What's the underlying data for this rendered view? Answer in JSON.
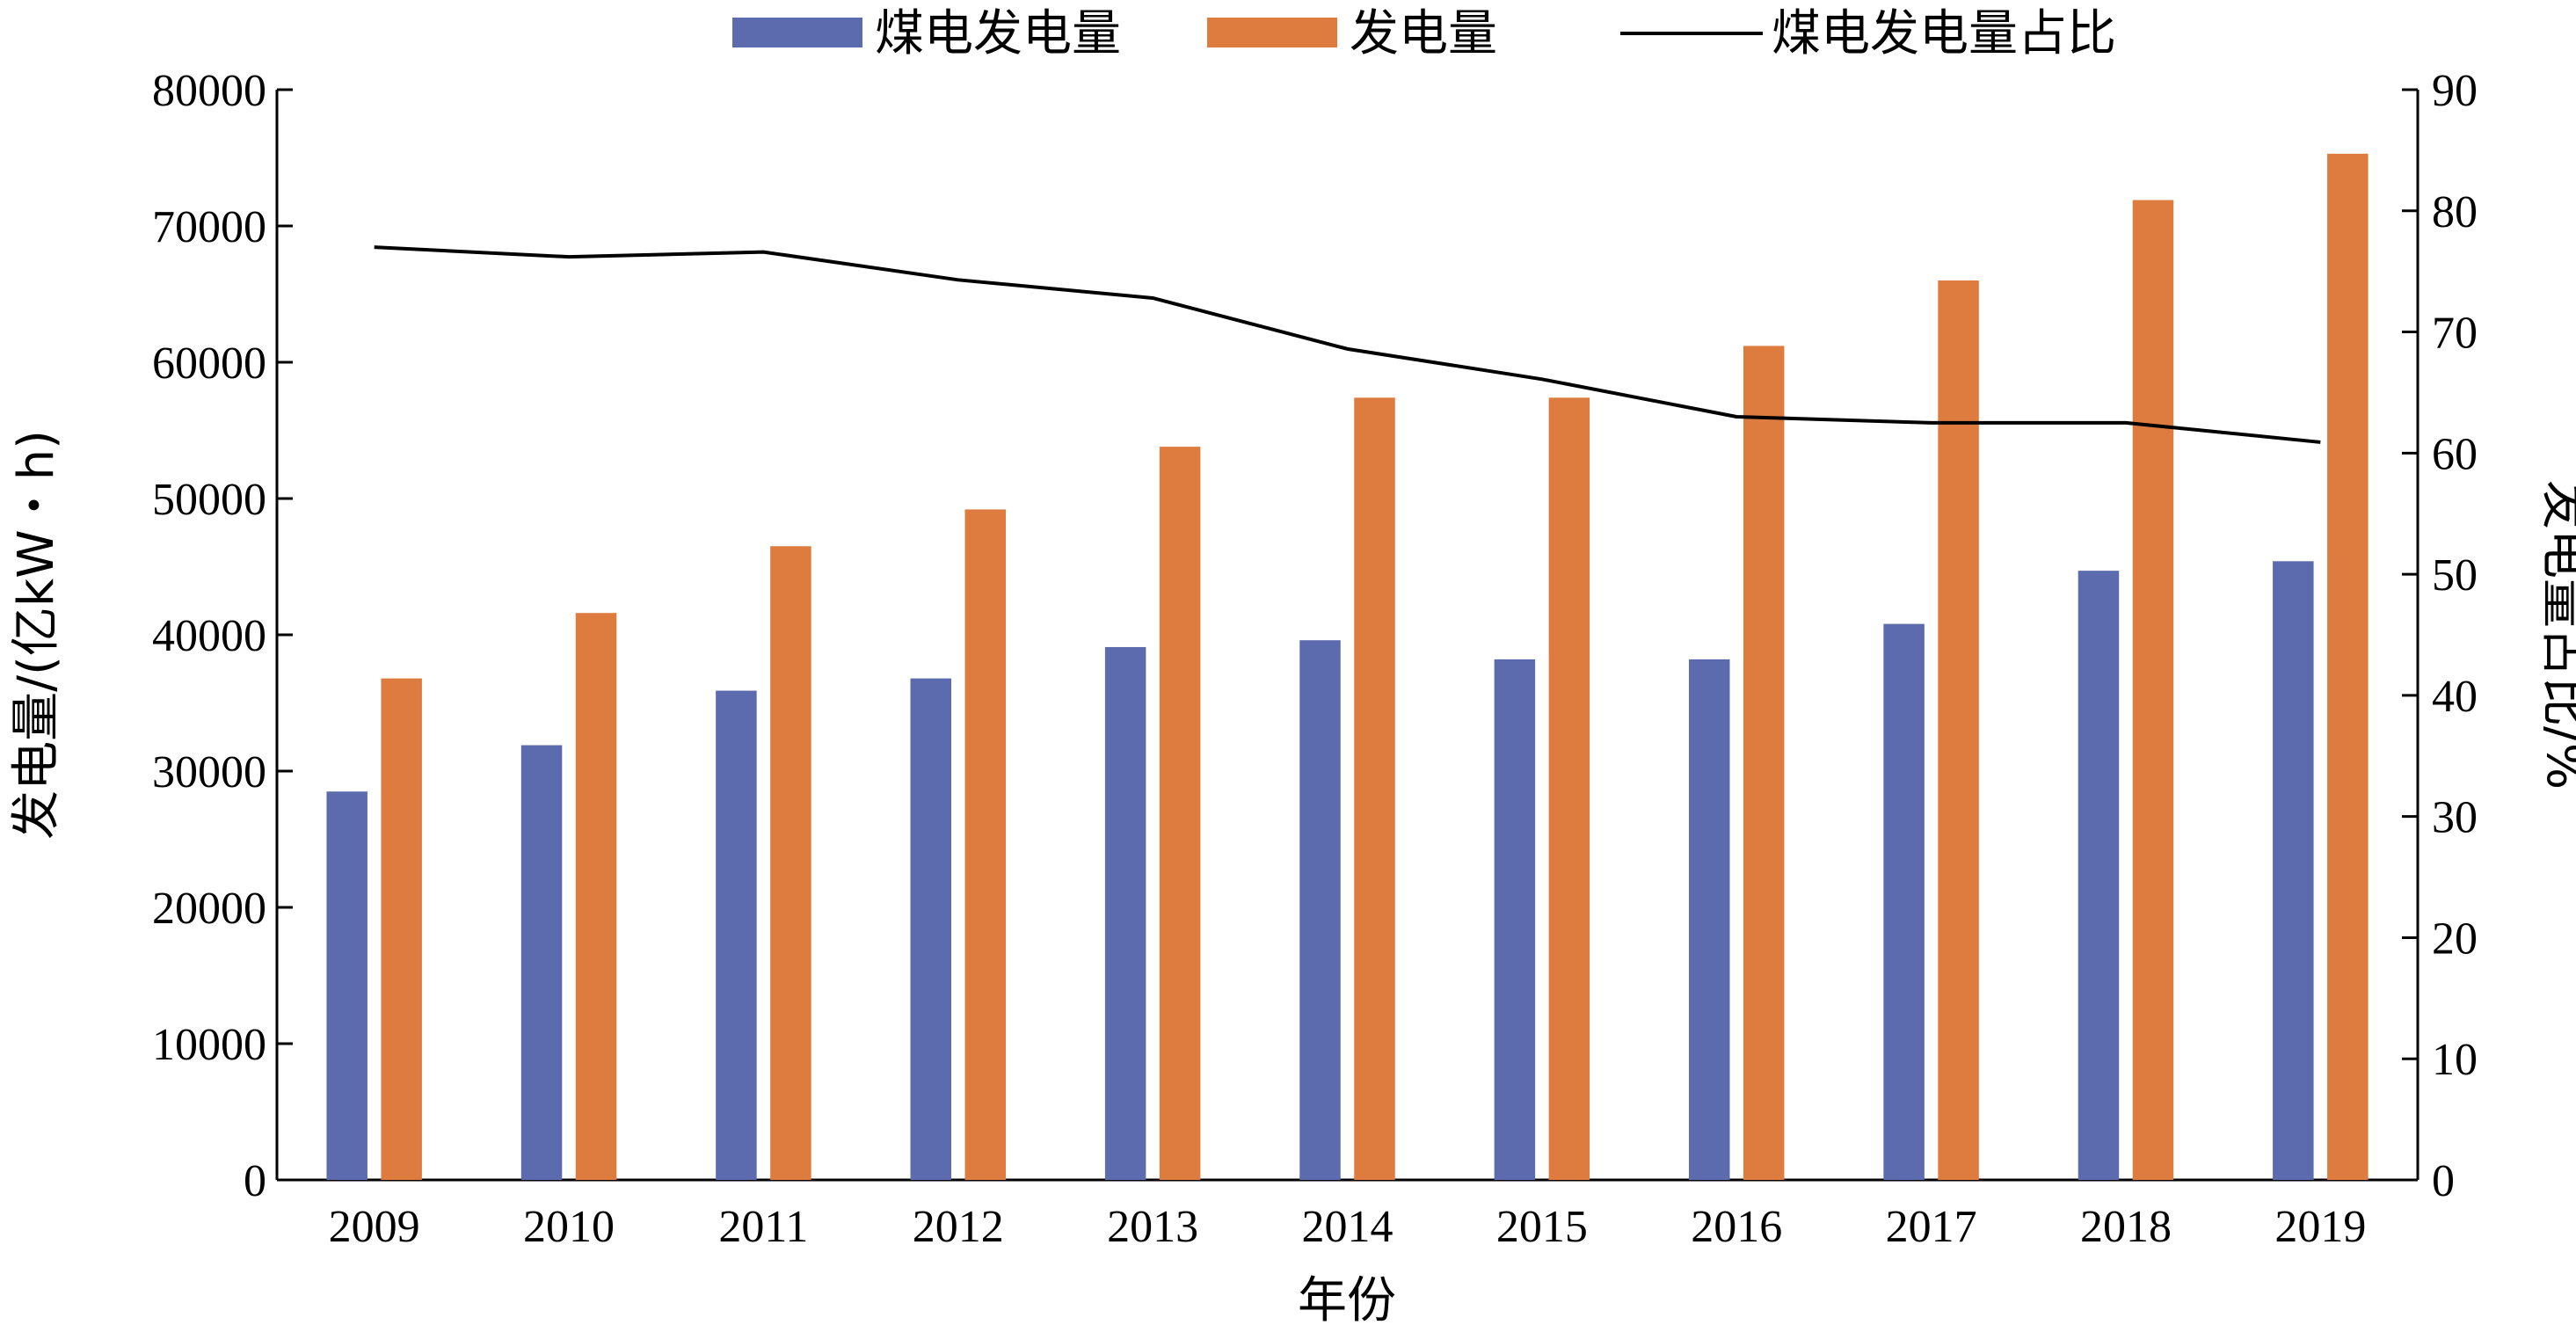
{
  "chart_data": {
    "type": "bar",
    "categories": [
      "2009",
      "2010",
      "2011",
      "2012",
      "2013",
      "2014",
      "2015",
      "2016",
      "2017",
      "2018",
      "2019"
    ],
    "series": [
      {
        "name": "煤电发电量",
        "type": "bar",
        "axis": "left",
        "color": "#5b6bad",
        "values": [
          28500,
          31900,
          35900,
          36800,
          39100,
          39600,
          38200,
          38200,
          40800,
          44700,
          45400
        ]
      },
      {
        "name": "发电量",
        "type": "bar",
        "axis": "left",
        "color": "#de7b3f",
        "values": [
          36800,
          41600,
          46500,
          49200,
          53800,
          57400,
          57400,
          61200,
          66000,
          71900,
          75300
        ]
      },
      {
        "name": "煤电发电量占比",
        "type": "line",
        "axis": "right",
        "color": "#000000",
        "values": [
          77.0,
          76.2,
          76.6,
          74.3,
          72.8,
          68.6,
          66.1,
          63.0,
          62.5,
          62.5,
          60.9
        ]
      }
    ],
    "xlabel": "年份",
    "ylabel": "发电量/(亿kW・h)",
    "y2label": "发电量占比/%",
    "ylim": [
      0,
      80000
    ],
    "y2lim": [
      0,
      90
    ],
    "yticks": [
      "0",
      "10000",
      "20000",
      "30000",
      "40000",
      "50000",
      "60000",
      "70000",
      "80000"
    ],
    "y2ticks": [
      "0",
      "10",
      "20",
      "30",
      "40",
      "50",
      "60",
      "70",
      "80",
      "90"
    ],
    "legend_position": "top-center",
    "grid": false
  }
}
